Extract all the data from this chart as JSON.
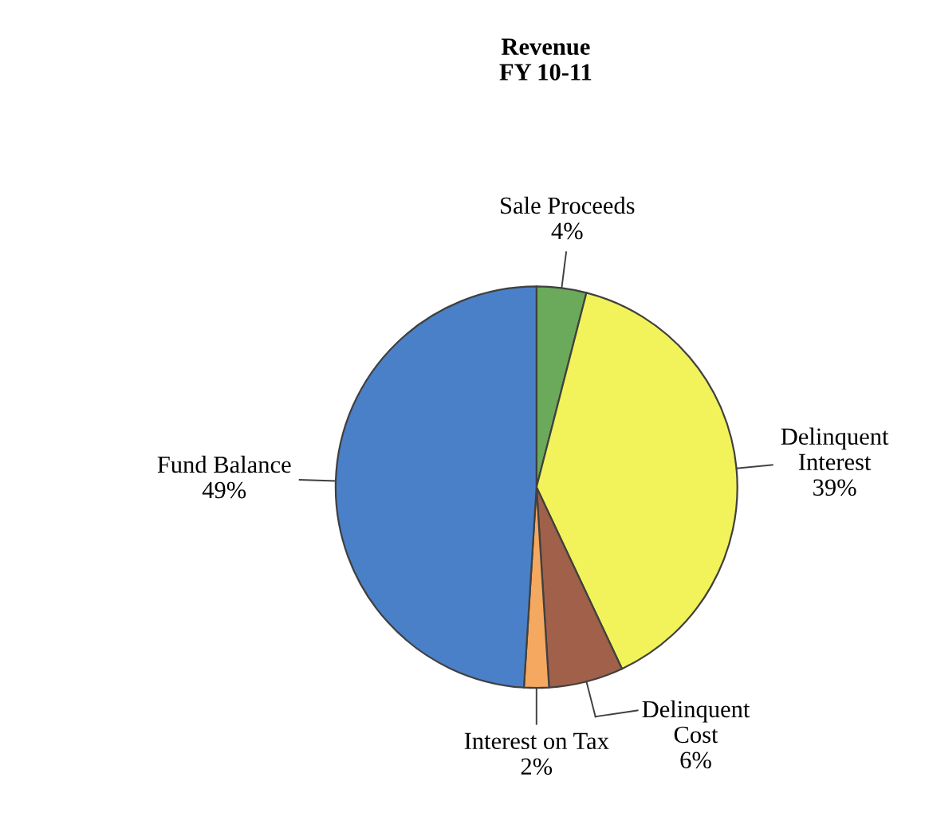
{
  "chart_data": {
    "type": "pie",
    "title": "Revenue\nFY 10-11",
    "categories": [
      "Sale Proceeds",
      "Delinquent Interest",
      "Delinquent Cost",
      "Interest on Tax",
      "Fund Balance"
    ],
    "values": [
      4,
      39,
      6,
      2,
      49
    ],
    "colors": [
      "#6aaa5a",
      "#f2f25a",
      "#a0604a",
      "#f5a860",
      "#4a80c8"
    ],
    "value_labels": [
      "4%",
      "39%",
      "6%",
      "2%",
      "49%"
    ]
  }
}
